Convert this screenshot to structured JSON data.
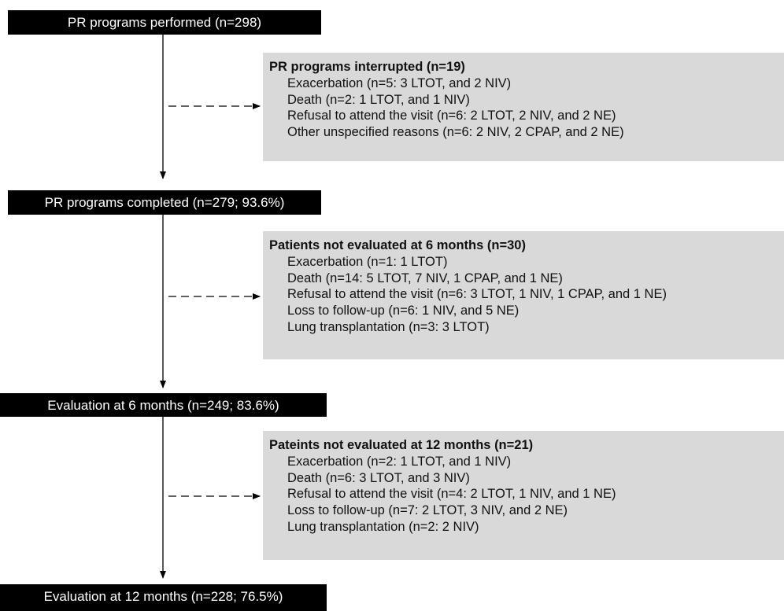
{
  "stages": [
    {
      "label": "PR programs performed (n=298)"
    },
    {
      "label": "PR programs completed (n=279; 93.6%)"
    },
    {
      "label": "Evaluation at 6 months (n=249; 83.6%)"
    },
    {
      "label": "Evaluation at 12 months (n=228; 76.5%)"
    }
  ],
  "exclusions": [
    {
      "title": "PR programs interrupted (n=19)",
      "reasons": [
        "Exacerbation (n=5: 3 LTOT, and 2 NIV)",
        "Death (n=2: 1 LTOT, and 1 NIV)",
        "Refusal to attend the visit (n=6: 2 LTOT, 2 NIV, and 2 NE)",
        "Other unspecified reasons (n=6: 2 NIV, 2 CPAP, and 2 NE)"
      ]
    },
    {
      "title": "Patients not evaluated at 6 months (n=30)",
      "reasons": [
        "Exacerbation (n=1: 1 LTOT)",
        "Death (n=14: 5 LTOT, 7 NIV, 1 CPAP, and 1 NE)",
        "Refusal to attend the visit (n=6: 3 LTOT, 1 NIV, 1 CPAP, and 1 NE)",
        "Loss to follow-up (n=6: 1 NIV, and 5 NE)",
        "Lung transplantation (n=3: 3 LTOT)"
      ]
    },
    {
      "title": "Pateints not evaluated at 12 months (n=21)",
      "reasons": [
        "Exacerbation (n=2: 1 LTOT, and 1 NIV)",
        "Death (n=6: 3 LTOT, and 3 NIV)",
        "Refusal to attend the visit (n=4: 2 LTOT, 1 NIV, and 1 NE)",
        "Loss to follow-up (n=7: 2 LTOT, 3 NIV, and 2 NE)",
        "Lung transplantation (n=2: 2 NIV)"
      ]
    }
  ],
  "colors": {
    "stage_box": "#000000",
    "stage_text": "#ffffff",
    "exclusion_box": "#d9d9d9",
    "line": "#000000"
  }
}
